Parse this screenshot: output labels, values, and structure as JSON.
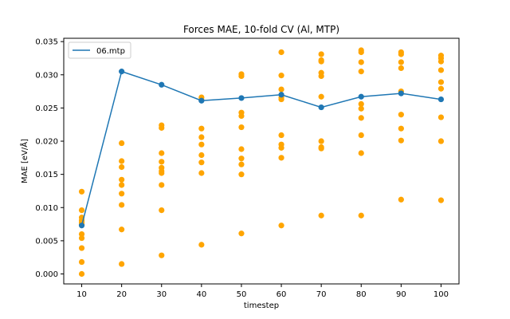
{
  "chart_data": {
    "type": "scatter",
    "title": "Forces MAE, 10-fold CV (Al, MTP)",
    "xlabel": "timestep",
    "ylabel": "MAE [eV/Å]",
    "x_ticks": [
      "10",
      "20",
      "30",
      "40",
      "50",
      "60",
      "70",
      "80",
      "90",
      "100"
    ],
    "y_ticks": [
      "0.000",
      "0.005",
      "0.010",
      "0.015",
      "0.020",
      "0.025",
      "0.030",
      "0.035"
    ],
    "xlim": [
      5.5,
      104.5
    ],
    "ylim": [
      -0.0015,
      0.0355
    ],
    "grid": false,
    "legend_position": "top-left",
    "series": [
      {
        "name": "06.mtp",
        "kind": "line",
        "color": "#1f77b4",
        "x": [
          10,
          20,
          30,
          40,
          50,
          60,
          70,
          80,
          90,
          100
        ],
        "y": [
          0.0073,
          0.0305,
          0.0285,
          0.0261,
          0.0265,
          0.027,
          0.0251,
          0.0267,
          0.0272,
          0.0263
        ]
      },
      {
        "kind": "scatter",
        "color": "#ffa500",
        "points": [
          [
            10,
            0.0124
          ],
          [
            10,
            0.0096
          ],
          [
            10,
            0.0085
          ],
          [
            10,
            0.0081
          ],
          [
            10,
            0.0078
          ],
          [
            10,
            0.0075
          ],
          [
            10,
            0.006
          ],
          [
            10,
            0.0054
          ],
          [
            10,
            0.0039
          ],
          [
            10,
            0.0018
          ],
          [
            10,
            0.0
          ],
          [
            20,
            0.0197
          ],
          [
            20,
            0.017
          ],
          [
            20,
            0.0161
          ],
          [
            20,
            0.0142
          ],
          [
            20,
            0.0134
          ],
          [
            20,
            0.0121
          ],
          [
            20,
            0.0104
          ],
          [
            20,
            0.0067
          ],
          [
            20,
            0.0015
          ],
          [
            30,
            0.0224
          ],
          [
            30,
            0.022
          ],
          [
            30,
            0.0182
          ],
          [
            30,
            0.0169
          ],
          [
            30,
            0.016
          ],
          [
            30,
            0.0155
          ],
          [
            30,
            0.0152
          ],
          [
            30,
            0.0134
          ],
          [
            30,
            0.0096
          ],
          [
            30,
            0.0028
          ],
          [
            40,
            0.0266
          ],
          [
            40,
            0.0262
          ],
          [
            40,
            0.0219
          ],
          [
            40,
            0.0206
          ],
          [
            40,
            0.0195
          ],
          [
            40,
            0.0179
          ],
          [
            40,
            0.0168
          ],
          [
            40,
            0.0152
          ],
          [
            40,
            0.0044
          ],
          [
            50,
            0.0301
          ],
          [
            50,
            0.0298
          ],
          [
            50,
            0.0243
          ],
          [
            50,
            0.0238
          ],
          [
            50,
            0.0221
          ],
          [
            50,
            0.0188
          ],
          [
            50,
            0.0174
          ],
          [
            50,
            0.0165
          ],
          [
            50,
            0.015
          ],
          [
            50,
            0.0061
          ],
          [
            60,
            0.0334
          ],
          [
            60,
            0.0299
          ],
          [
            60,
            0.0278
          ],
          [
            60,
            0.0266
          ],
          [
            60,
            0.0263
          ],
          [
            60,
            0.0209
          ],
          [
            60,
            0.0195
          ],
          [
            60,
            0.019
          ],
          [
            60,
            0.0175
          ],
          [
            60,
            0.0073
          ],
          [
            70,
            0.0331
          ],
          [
            70,
            0.0322
          ],
          [
            70,
            0.032
          ],
          [
            70,
            0.0303
          ],
          [
            70,
            0.0298
          ],
          [
            70,
            0.0267
          ],
          [
            70,
            0.02
          ],
          [
            70,
            0.0191
          ],
          [
            70,
            0.0189
          ],
          [
            70,
            0.0088
          ],
          [
            80,
            0.0337
          ],
          [
            80,
            0.0334
          ],
          [
            80,
            0.0319
          ],
          [
            80,
            0.0305
          ],
          [
            80,
            0.0256
          ],
          [
            80,
            0.0249
          ],
          [
            80,
            0.0235
          ],
          [
            80,
            0.0209
          ],
          [
            80,
            0.0182
          ],
          [
            80,
            0.0088
          ],
          [
            90,
            0.0334
          ],
          [
            90,
            0.0331
          ],
          [
            90,
            0.0319
          ],
          [
            90,
            0.031
          ],
          [
            90,
            0.0275
          ],
          [
            90,
            0.024
          ],
          [
            90,
            0.0219
          ],
          [
            90,
            0.0201
          ],
          [
            90,
            0.0112
          ],
          [
            100,
            0.0329
          ],
          [
            100,
            0.0325
          ],
          [
            100,
            0.032
          ],
          [
            100,
            0.0307
          ],
          [
            100,
            0.0289
          ],
          [
            100,
            0.0279
          ],
          [
            100,
            0.0236
          ],
          [
            100,
            0.02
          ],
          [
            100,
            0.0111
          ]
        ]
      }
    ]
  }
}
